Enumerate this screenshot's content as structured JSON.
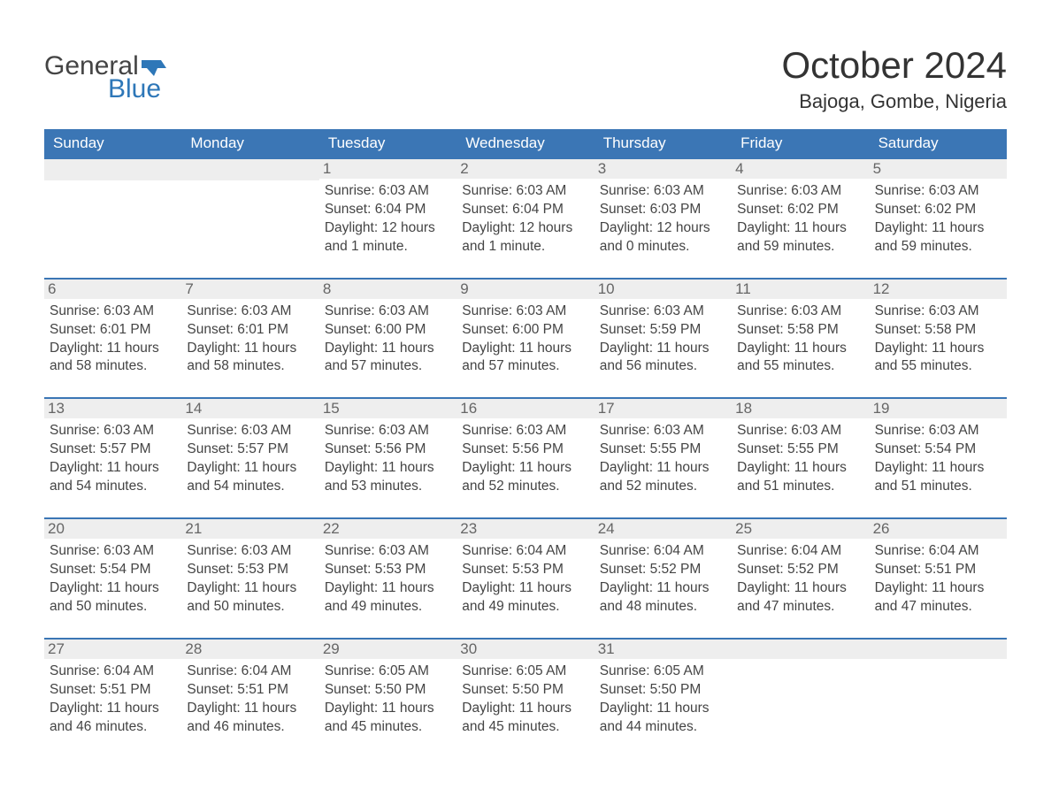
{
  "colors": {
    "header_blue": "#3b76b5",
    "row_border": "#3b76b5",
    "daynum_bg": "#eeeeee",
    "text": "#444444",
    "brand_blue": "#2e77b8",
    "background": "#ffffff"
  },
  "logo": {
    "line1": "General",
    "line2": "Blue"
  },
  "title": "October 2024",
  "location": "Bajoga, Gombe, Nigeria",
  "day_names": [
    "Sunday",
    "Monday",
    "Tuesday",
    "Wednesday",
    "Thursday",
    "Friday",
    "Saturday"
  ],
  "leading_blanks": 2,
  "days": [
    {
      "n": 1,
      "sunrise": "6:03 AM",
      "sunset": "6:04 PM",
      "daylight": "12 hours and 1 minute."
    },
    {
      "n": 2,
      "sunrise": "6:03 AM",
      "sunset": "6:04 PM",
      "daylight": "12 hours and 1 minute."
    },
    {
      "n": 3,
      "sunrise": "6:03 AM",
      "sunset": "6:03 PM",
      "daylight": "12 hours and 0 minutes."
    },
    {
      "n": 4,
      "sunrise": "6:03 AM",
      "sunset": "6:02 PM",
      "daylight": "11 hours and 59 minutes."
    },
    {
      "n": 5,
      "sunrise": "6:03 AM",
      "sunset": "6:02 PM",
      "daylight": "11 hours and 59 minutes."
    },
    {
      "n": 6,
      "sunrise": "6:03 AM",
      "sunset": "6:01 PM",
      "daylight": "11 hours and 58 minutes."
    },
    {
      "n": 7,
      "sunrise": "6:03 AM",
      "sunset": "6:01 PM",
      "daylight": "11 hours and 58 minutes."
    },
    {
      "n": 8,
      "sunrise": "6:03 AM",
      "sunset": "6:00 PM",
      "daylight": "11 hours and 57 minutes."
    },
    {
      "n": 9,
      "sunrise": "6:03 AM",
      "sunset": "6:00 PM",
      "daylight": "11 hours and 57 minutes."
    },
    {
      "n": 10,
      "sunrise": "6:03 AM",
      "sunset": "5:59 PM",
      "daylight": "11 hours and 56 minutes."
    },
    {
      "n": 11,
      "sunrise": "6:03 AM",
      "sunset": "5:58 PM",
      "daylight": "11 hours and 55 minutes."
    },
    {
      "n": 12,
      "sunrise": "6:03 AM",
      "sunset": "5:58 PM",
      "daylight": "11 hours and 55 minutes."
    },
    {
      "n": 13,
      "sunrise": "6:03 AM",
      "sunset": "5:57 PM",
      "daylight": "11 hours and 54 minutes."
    },
    {
      "n": 14,
      "sunrise": "6:03 AM",
      "sunset": "5:57 PM",
      "daylight": "11 hours and 54 minutes."
    },
    {
      "n": 15,
      "sunrise": "6:03 AM",
      "sunset": "5:56 PM",
      "daylight": "11 hours and 53 minutes."
    },
    {
      "n": 16,
      "sunrise": "6:03 AM",
      "sunset": "5:56 PM",
      "daylight": "11 hours and 52 minutes."
    },
    {
      "n": 17,
      "sunrise": "6:03 AM",
      "sunset": "5:55 PM",
      "daylight": "11 hours and 52 minutes."
    },
    {
      "n": 18,
      "sunrise": "6:03 AM",
      "sunset": "5:55 PM",
      "daylight": "11 hours and 51 minutes."
    },
    {
      "n": 19,
      "sunrise": "6:03 AM",
      "sunset": "5:54 PM",
      "daylight": "11 hours and 51 minutes."
    },
    {
      "n": 20,
      "sunrise": "6:03 AM",
      "sunset": "5:54 PM",
      "daylight": "11 hours and 50 minutes."
    },
    {
      "n": 21,
      "sunrise": "6:03 AM",
      "sunset": "5:53 PM",
      "daylight": "11 hours and 50 minutes."
    },
    {
      "n": 22,
      "sunrise": "6:03 AM",
      "sunset": "5:53 PM",
      "daylight": "11 hours and 49 minutes."
    },
    {
      "n": 23,
      "sunrise": "6:04 AM",
      "sunset": "5:53 PM",
      "daylight": "11 hours and 49 minutes."
    },
    {
      "n": 24,
      "sunrise": "6:04 AM",
      "sunset": "5:52 PM",
      "daylight": "11 hours and 48 minutes."
    },
    {
      "n": 25,
      "sunrise": "6:04 AM",
      "sunset": "5:52 PM",
      "daylight": "11 hours and 47 minutes."
    },
    {
      "n": 26,
      "sunrise": "6:04 AM",
      "sunset": "5:51 PM",
      "daylight": "11 hours and 47 minutes."
    },
    {
      "n": 27,
      "sunrise": "6:04 AM",
      "sunset": "5:51 PM",
      "daylight": "11 hours and 46 minutes."
    },
    {
      "n": 28,
      "sunrise": "6:04 AM",
      "sunset": "5:51 PM",
      "daylight": "11 hours and 46 minutes."
    },
    {
      "n": 29,
      "sunrise": "6:05 AM",
      "sunset": "5:50 PM",
      "daylight": "11 hours and 45 minutes."
    },
    {
      "n": 30,
      "sunrise": "6:05 AM",
      "sunset": "5:50 PM",
      "daylight": "11 hours and 45 minutes."
    },
    {
      "n": 31,
      "sunrise": "6:05 AM",
      "sunset": "5:50 PM",
      "daylight": "11 hours and 44 minutes."
    }
  ],
  "labels": {
    "sunrise": "Sunrise: ",
    "sunset": "Sunset: ",
    "daylight": "Daylight: "
  }
}
